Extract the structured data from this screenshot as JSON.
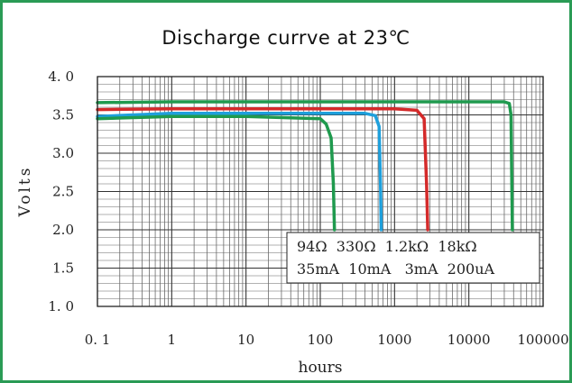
{
  "chart_data": {
    "type": "line",
    "title": "Discharge currve  at 23℃",
    "xlabel": "hours",
    "ylabel": "Volts",
    "xscale": "log",
    "xlim": [
      0.1,
      100000
    ],
    "ylim": [
      1.0,
      4.0
    ],
    "x_ticks": [
      "0. 1",
      "1",
      "10",
      "100",
      "1000",
      "10000",
      "100000"
    ],
    "y_ticks": [
      "1. 0",
      "1.5",
      "2.0",
      "2.5",
      "3.0",
      "3.5",
      "4. 0"
    ],
    "grid": true,
    "legend": {
      "placement": "inside lower-right",
      "row1": "94Ω  330Ω  1.2kΩ  18kΩ",
      "row2": "35mA  10mA   3mA  200uA"
    },
    "series": [
      {
        "color": "#1f9a4e",
        "x": [
          0.1,
          1,
          10,
          100,
          30000,
          35000,
          37000,
          38000,
          38500
        ],
        "y": [
          3.66,
          3.67,
          3.67,
          3.67,
          3.67,
          3.65,
          3.5,
          2.5,
          2.0
        ]
      },
      {
        "color": "#d42a2a",
        "x": [
          0.1,
          1,
          10,
          100,
          1000,
          2000,
          2500,
          2700,
          2800
        ],
        "y": [
          3.57,
          3.58,
          3.58,
          3.58,
          3.58,
          3.56,
          3.45,
          2.6,
          2.0
        ]
      },
      {
        "color": "#1fa0dc",
        "x": [
          0.1,
          1,
          10,
          100,
          400,
          550,
          620,
          650,
          660
        ],
        "y": [
          3.48,
          3.52,
          3.52,
          3.52,
          3.52,
          3.49,
          3.35,
          2.5,
          2.0
        ]
      },
      {
        "color": "#1f9a4e",
        "x": [
          0.1,
          1,
          10,
          100,
          120,
          140,
          150,
          155
        ],
        "y": [
          3.45,
          3.48,
          3.48,
          3.45,
          3.38,
          3.2,
          2.6,
          2.0
        ]
      }
    ]
  }
}
